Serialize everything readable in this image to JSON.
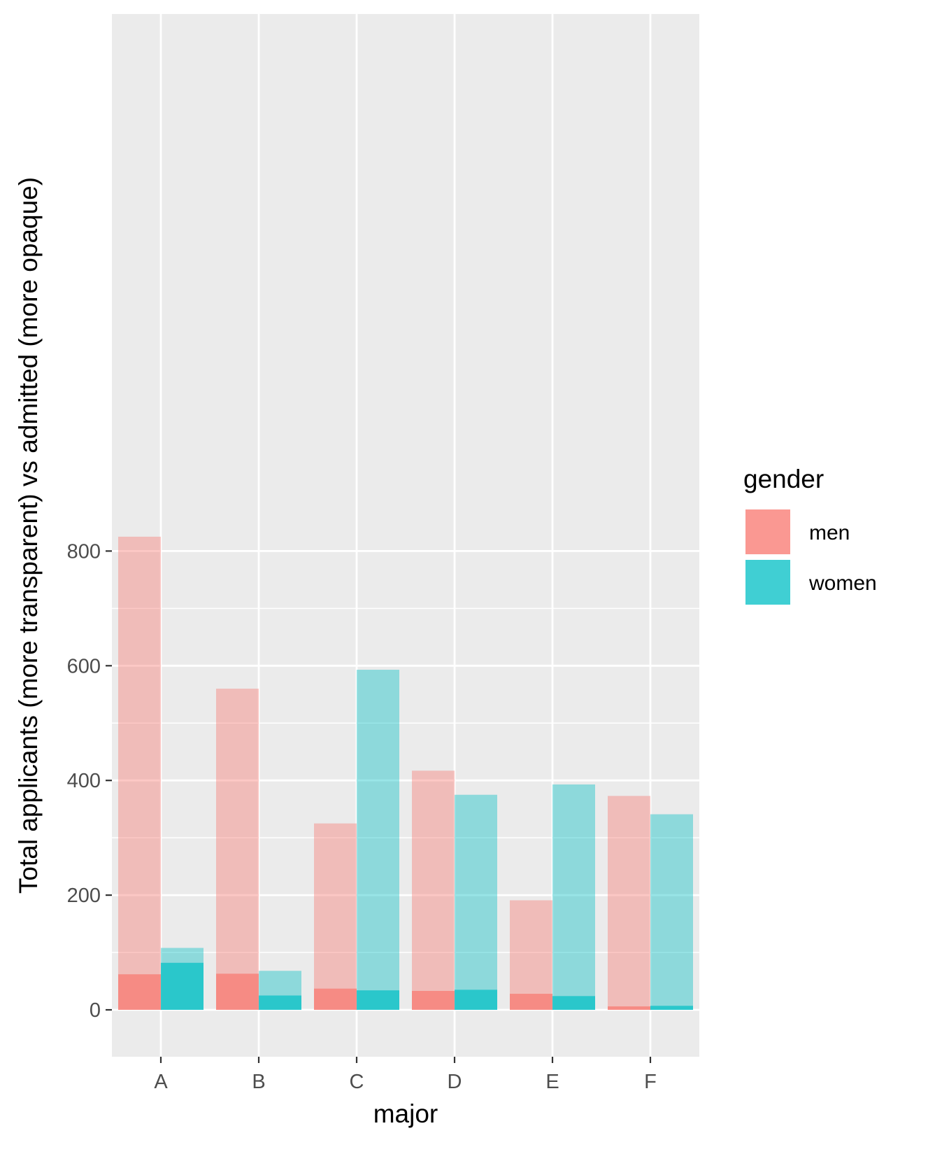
{
  "chart_data": {
    "type": "bar",
    "title": "",
    "xlabel": "major",
    "ylabel": "Total applicants (more transparent) vs admitted (more opaque)",
    "categories": [
      "A",
      "B",
      "C",
      "D",
      "E",
      "F"
    ],
    "ylim": [
      -40,
      870
    ],
    "yticks": [
      0,
      200,
      400,
      600,
      800
    ],
    "grid": true,
    "legend": {
      "title": "gender",
      "position": "right",
      "entries": [
        "men",
        "women"
      ]
    },
    "series": [
      {
        "name": "men",
        "color": "#F8766D",
        "applicants": [
          825,
          560,
          325,
          417,
          191,
          373
        ],
        "admitted": [
          62,
          63,
          37,
          33,
          28,
          6
        ]
      },
      {
        "name": "women",
        "color": "#00BFC4",
        "applicants": [
          108,
          68,
          593,
          375,
          393,
          341
        ],
        "admitted": [
          82,
          25,
          34,
          35,
          24,
          7
        ]
      }
    ],
    "colors": {
      "panel_background": "#EBEBEB",
      "grid": "#FFFFFF",
      "tick_mark": "#333333"
    }
  }
}
